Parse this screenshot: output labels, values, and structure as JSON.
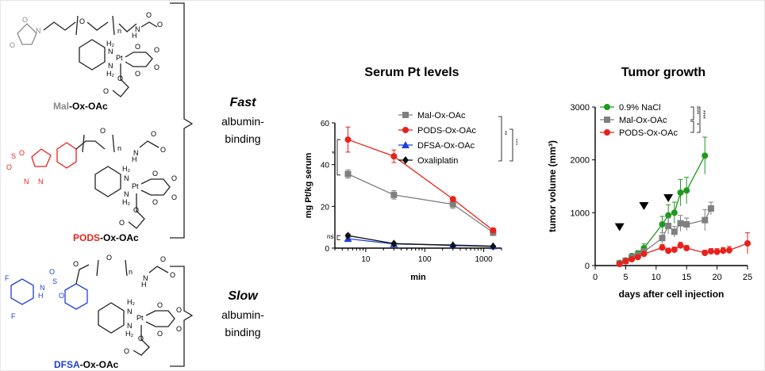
{
  "structures": {
    "mal_prefix": "Mal",
    "pods_prefix": "PODS",
    "dfsa_prefix": "DFSA",
    "suffix": "-Ox-OAc"
  },
  "groups": {
    "fast_word": "Fast",
    "fast_desc_1": "albumin-",
    "fast_desc_2": "binding",
    "slow_word": "Slow",
    "slow_desc_1": "albumin-",
    "slow_desc_2": "binding"
  },
  "chart_data": [
    {
      "type": "line",
      "title": "Serum Pt levels",
      "xlabel": "min",
      "ylabel": "mg Pt/kg serum",
      "xscale": "log",
      "xlim": [
        3,
        2000
      ],
      "ylim": [
        0,
        60
      ],
      "xticks": [
        "10",
        "100",
        "1000"
      ],
      "yticks": [
        "0",
        "20",
        "40",
        "60"
      ],
      "x": [
        5,
        30,
        300,
        1440
      ],
      "legend_position": "top-right",
      "series": [
        {
          "name": "Mal-Ox-OAc",
          "color": "#808080",
          "marker": "square",
          "values": [
            35.5,
            25.5,
            21,
            7.5
          ],
          "errors": [
            2,
            2,
            2,
            1.5
          ]
        },
        {
          "name": "PODS-Ox-OAc",
          "color": "#e8221b",
          "marker": "circle",
          "values": [
            52,
            44,
            23.5,
            8.5
          ],
          "errors": [
            6,
            3,
            0.5,
            1
          ]
        },
        {
          "name": "DFSA-Ox-OAc",
          "color": "#1f3fd6",
          "marker": "triangle",
          "values": [
            4.5,
            2,
            1.5,
            1
          ],
          "errors": [
            1,
            0.5,
            0.3,
            0.3
          ]
        },
        {
          "name": "Oxaliplatin",
          "color": "#111111",
          "marker": "diamond",
          "values": [
            6,
            2.2,
            1.3,
            0.8
          ],
          "errors": [
            0.8,
            0.4,
            0.3,
            0.2
          ]
        }
      ],
      "annotations": [
        "ns",
        "*",
        "**",
        "***",
        "****",
        "****"
      ]
    },
    {
      "type": "line",
      "title": "Tumor growth",
      "xlabel": "days after cell injection",
      "ylabel": "tumor volume (mm³)",
      "xlim": [
        0,
        25
      ],
      "ylim": [
        0,
        3000
      ],
      "xticks": [
        "0",
        "5",
        "10",
        "15",
        "20",
        "25"
      ],
      "yticks": [
        "0",
        "1000",
        "2000",
        "3000"
      ],
      "legend_position": "top-left",
      "dose_days": [
        4,
        8,
        12
      ],
      "series": [
        {
          "name": "0.9% NaCl",
          "color": "#1f9a1f",
          "marker": "circle",
          "x": [
            4,
            5,
            6,
            7,
            8,
            11,
            12,
            13,
            14,
            15,
            18
          ],
          "values": [
            50,
            100,
            180,
            230,
            330,
            780,
            950,
            1000,
            1380,
            1420,
            2080
          ],
          "errors": [
            20,
            30,
            40,
            50,
            80,
            150,
            200,
            200,
            250,
            250,
            350
          ]
        },
        {
          "name": "Mal-Ox-OAc",
          "color": "#808080",
          "marker": "square",
          "x": [
            4,
            5,
            6,
            7,
            8,
            11,
            12,
            13,
            14,
            15,
            18,
            19
          ],
          "values": [
            40,
            90,
            150,
            200,
            260,
            520,
            750,
            640,
            800,
            780,
            860,
            1080
          ],
          "errors": [
            15,
            20,
            30,
            40,
            60,
            100,
            150,
            100,
            150,
            120,
            200,
            120
          ]
        },
        {
          "name": "PODS-Ox-OAc",
          "color": "#e8221b",
          "marker": "circle",
          "x": [
            4,
            5,
            6,
            7,
            8,
            11,
            12,
            13,
            14,
            15,
            18,
            19,
            20,
            21,
            22,
            25
          ],
          "values": [
            30,
            80,
            120,
            160,
            220,
            340,
            280,
            300,
            380,
            330,
            240,
            270,
            260,
            280,
            290,
            420
          ],
          "errors": [
            10,
            15,
            20,
            30,
            40,
            60,
            50,
            50,
            60,
            50,
            50,
            50,
            60,
            60,
            70,
            200
          ]
        }
      ],
      "annotations": [
        "***",
        "*",
        "****"
      ]
    }
  ]
}
